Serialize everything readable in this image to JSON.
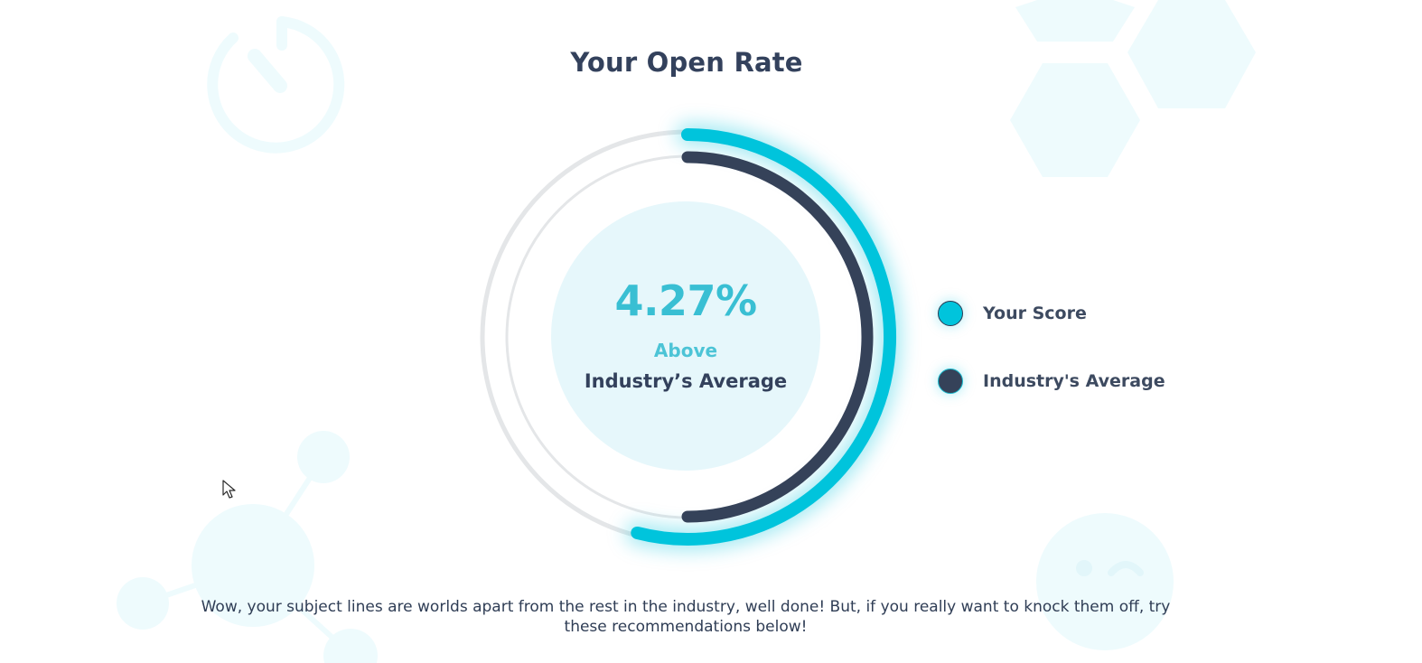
{
  "header": {
    "title": "Your Open Rate"
  },
  "gauge": {
    "score_value": "4.27%",
    "comparison": "Above",
    "comparison_subject": "Industry’s Average",
    "your_score_fraction": 0.54,
    "industry_average_fraction": 0.5
  },
  "legend": {
    "items": [
      {
        "label": "Your Score",
        "color": "#00c4dc"
      },
      {
        "label": "Industry's Average",
        "color": "#354259"
      }
    ]
  },
  "message": {
    "text": "Wow, your subject lines are worlds apart from the rest in the industry, well done! But, if you really want to knock them off, try these recommendations below!"
  },
  "colors": {
    "accent": "#00c4dc",
    "dark": "#33415c",
    "track": "#e4e6e8",
    "inner_circle": "#e6f7fb",
    "decor": "#eefbfd"
  }
}
